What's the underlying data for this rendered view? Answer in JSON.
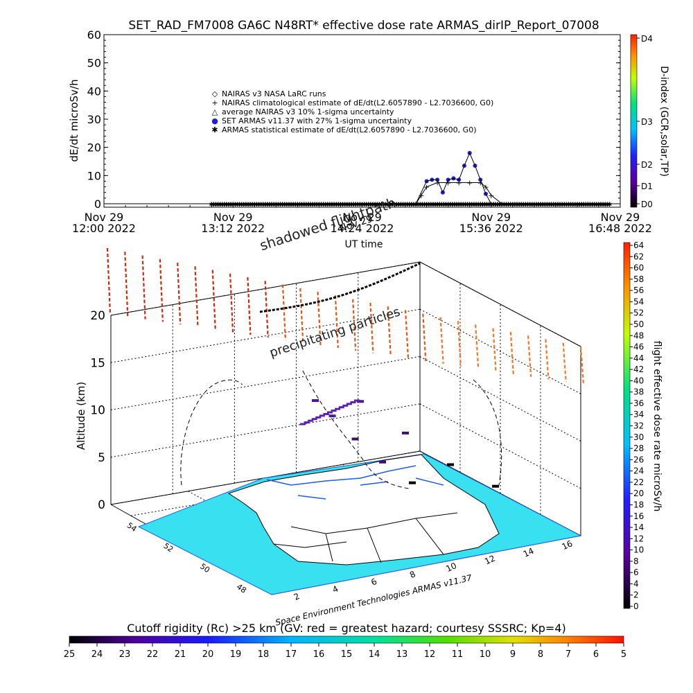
{
  "title": "SET_RAD_FM7008   GA6C N48RT* effective dose rate ARMAS_dirIP_Report_07008",
  "chart_data": [
    {
      "type": "scatter",
      "ylabel": "dE/dt microSv/h",
      "xlabel": "UT time",
      "ylim": [
        0,
        60
      ],
      "yticks": [
        0,
        10,
        20,
        30,
        40,
        50,
        60
      ],
      "xlim": [
        "2022-11-29 12:00",
        "2022-11-29 16:48"
      ],
      "xtick_labels": [
        {
          "line1": "Nov 29",
          "line2": "12:00 2022"
        },
        {
          "line1": "Nov 29",
          "line2": "13:12 2022"
        },
        {
          "line1": "Nov 29",
          "line2": "14:24 2022"
        },
        {
          "line1": "Nov 29",
          "line2": "15:36 2022"
        },
        {
          "line1": "Nov 29",
          "line2": "16:48 2022"
        }
      ],
      "legend_position": "top-left",
      "legend": [
        {
          "symbol": "◇",
          "label": "NAIRAS v3 NASA LaRC runs",
          "color": "#000000"
        },
        {
          "symbol": "+",
          "label": "NAIRAS climatological estimate of dE/dt(L2.6057890 - L2.7036600, G0)",
          "color": "#000000"
        },
        {
          "symbol": "△",
          "label": "average NAIRAS v3 10% 1-sigma uncertainty",
          "color": "#000000"
        },
        {
          "symbol": "●",
          "label": "SET ARMAS v11.37 with 27% 1-sigma uncertainty",
          "color": "#1f1fd6"
        },
        {
          "symbol": "✱",
          "label": "ARMAS statistical estimate of dE/dt(L2.6057890 - L2.7036600, G0)",
          "color": "#000000"
        }
      ],
      "series": [
        {
          "name": "SET ARMAS v11.37 with 27% 1-sigma uncertainty",
          "x_hours": [
            12.0,
            12.5,
            13.0,
            13.5,
            14.0,
            14.5,
            14.9,
            15.0,
            15.05,
            15.1,
            15.15,
            15.2,
            15.25,
            15.3,
            15.35,
            15.4,
            15.45,
            15.5,
            15.55,
            15.6,
            15.7,
            16.0,
            16.5,
            16.8
          ],
          "values": [
            0,
            0,
            0,
            0,
            0,
            0,
            0,
            8,
            8.5,
            8.5,
            4,
            8.5,
            9,
            8.5,
            13.5,
            18,
            13.5,
            8.5,
            3.5,
            0,
            0,
            0,
            0,
            0
          ]
        },
        {
          "name": "NAIRAS climatological estimate of dE/dt(L2.6057890 - L2.7036600, G0)",
          "x_hours": [
            14.9,
            14.95,
            15.0,
            15.1,
            15.2,
            15.3,
            15.4,
            15.5,
            15.55,
            15.6,
            15.7
          ],
          "values": [
            0,
            3,
            6,
            7.5,
            7.5,
            7.5,
            7.5,
            7.5,
            6,
            3,
            0
          ]
        }
      ],
      "right_axis": {
        "label": "D-index (GCR,solar,TP)",
        "ticks": [
          "D0",
          "D1",
          "D2",
          "D3",
          "D4"
        ]
      }
    },
    {
      "type": "scatter",
      "title_annotations": [
        "shadowed flightpath",
        "precipitating particles",
        "Nov 29"
      ],
      "zlabel": "Altitude (km)",
      "zticks": [
        "0",
        "5",
        "10",
        "15",
        "20"
      ],
      "longitude_ticks": [
        "2",
        "4",
        "6",
        "8",
        "10",
        "12",
        "14",
        "16"
      ],
      "latitude_ticks": [
        "48",
        "50",
        "52",
        "54"
      ],
      "flight_track": [
        {
          "altitude_km": 0.3,
          "rate": 4
        },
        {
          "altitude_km": 3.0,
          "rate": 6
        },
        {
          "altitude_km": 6.0,
          "rate": 8
        },
        {
          "altitude_km": 9.0,
          "rate": 10
        },
        {
          "altitude_km": 11.0,
          "rate": 12
        },
        {
          "altitude_km": 11.0,
          "rate": 10
        },
        {
          "altitude_km": 7.0,
          "rate": 6
        },
        {
          "altitude_km": 3.0,
          "rate": 4
        },
        {
          "altitude_km": 0.3,
          "rate": 2
        }
      ],
      "colorbar_right": {
        "label": "flight effective dose rate microSv/h",
        "ticks": [
          "0",
          "2",
          "4",
          "6",
          "8",
          "10",
          "12",
          "14",
          "16",
          "18",
          "20",
          "22",
          "24",
          "26",
          "28",
          "30",
          "32",
          "34",
          "36",
          "38",
          "40",
          "42",
          "44",
          "46",
          "48",
          "50",
          "52",
          "54",
          "56",
          "58",
          "60",
          "62",
          "64"
        ]
      },
      "credit": "Space Environment Technologies ARMAS v11.37"
    }
  ],
  "bottom_colorbar": {
    "title": "Cutoff rigidity (Rc) >25 km (GV: red = greatest hazard; courtesy SSSRC; Kp=4)",
    "ticks": [
      "25",
      "24",
      "23",
      "22",
      "21",
      "20",
      "19",
      "18",
      "17",
      "16",
      "15",
      "14",
      "13",
      "12",
      "11",
      "10",
      "9",
      "8",
      "7",
      "6",
      "5"
    ]
  },
  "colors": {
    "track_low": "#000000",
    "track_mid": "#5a1fb0",
    "particles": "#e04010",
    "sea": "#38e0f0",
    "land": "#ffffff"
  }
}
